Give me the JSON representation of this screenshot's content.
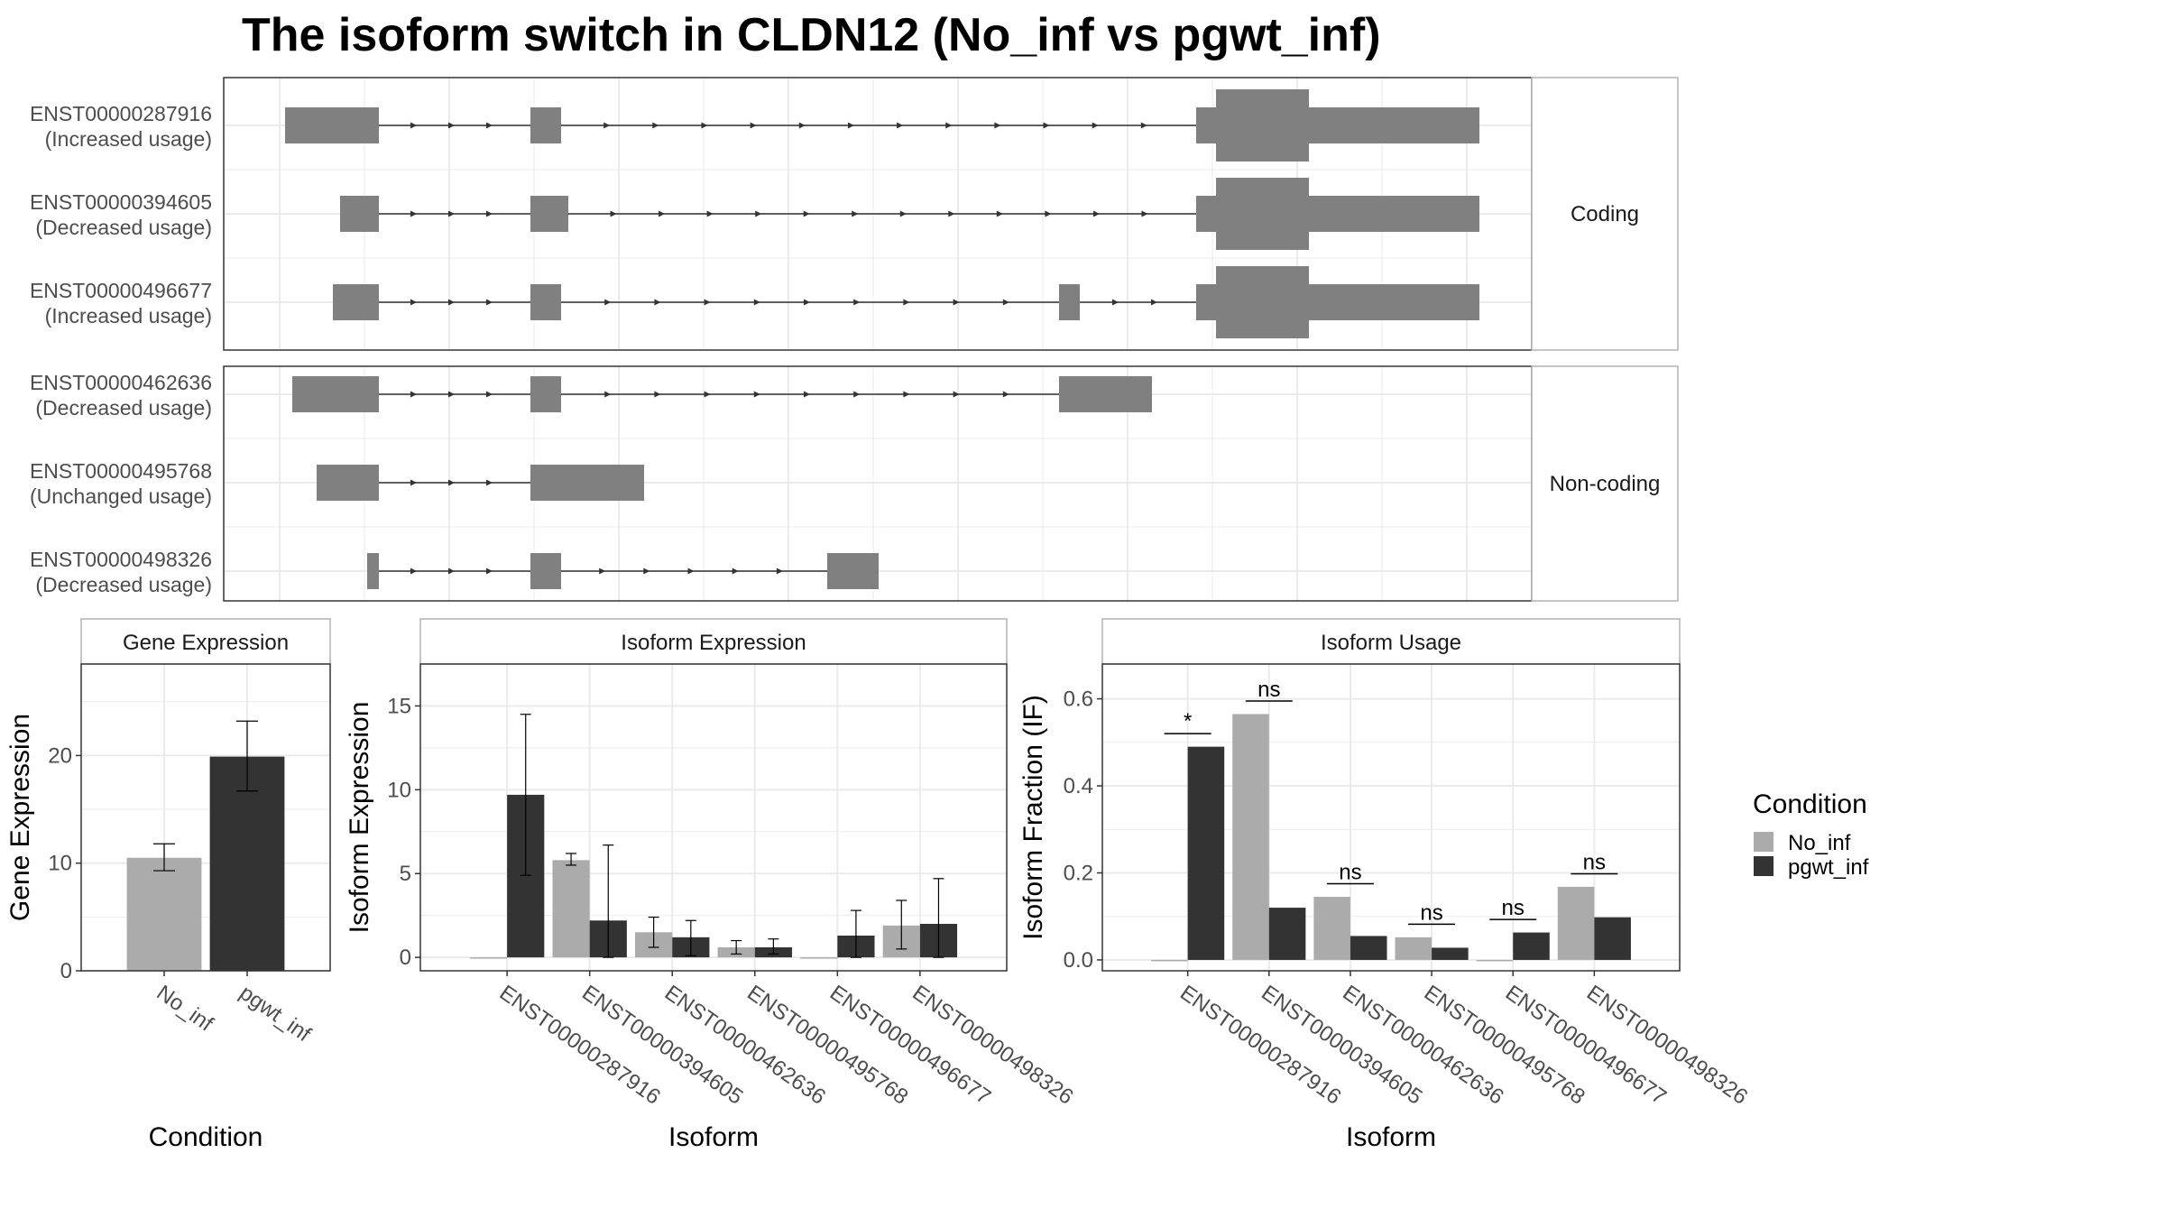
{
  "title": "The isoform switch in CLDN12 (No_inf vs pgwt_inf)",
  "colors": {
    "no_inf": "#ababab",
    "pgwt_inf": "#333333",
    "exon": "#808080",
    "grid": "#ebebeb",
    "panel_border": "#333333",
    "strip_border": "#b3b3b3"
  },
  "structure": {
    "groups": [
      {
        "label": "Coding",
        "isoforms": [
          {
            "id": "ENST00000287916",
            "usage": "(Increased usage)"
          },
          {
            "id": "ENST00000394605",
            "usage": "(Decreased usage)"
          },
          {
            "id": "ENST00000496677",
            "usage": "(Increased usage)"
          }
        ]
      },
      {
        "label": "Non-coding",
        "isoforms": [
          {
            "id": "ENST00000462636",
            "usage": "(Decreased usage)"
          },
          {
            "id": "ENST00000495768",
            "usage": "(Unchanged usage)"
          },
          {
            "id": "ENST00000498326",
            "usage": "(Decreased usage)"
          }
        ]
      }
    ]
  },
  "legend": {
    "title": "Condition",
    "items": [
      {
        "label": "No_inf",
        "color": "#ababab"
      },
      {
        "label": "pgwt_inf",
        "color": "#333333"
      }
    ]
  },
  "chart_data": [
    {
      "type": "bar",
      "title": "Gene Expression",
      "xlabel": "Condition",
      "ylabel": "Gene Expression",
      "categories": [
        "No_inf",
        "pgwt_inf"
      ],
      "values": [
        10.5,
        19.9
      ],
      "errors": [
        [
          9.3,
          11.8
        ],
        [
          16.7,
          23.2
        ]
      ],
      "ylim": [
        0,
        28.5
      ],
      "yticks": [
        0,
        10,
        20
      ]
    },
    {
      "type": "bar",
      "title": "Isoform Expression",
      "xlabel": "Isoform",
      "ylabel": "Isoform Expression",
      "categories": [
        "ENST00000287916",
        "ENST00000394605",
        "ENST00000462636",
        "ENST00000495768",
        "ENST00000496677",
        "ENST00000498326"
      ],
      "series": [
        {
          "name": "No_inf",
          "values": [
            0,
            5.8,
            1.5,
            0.6,
            0,
            1.9
          ],
          "errors": [
            [
              0,
              0
            ],
            [
              5.5,
              6.2
            ],
            [
              0.6,
              2.4
            ],
            [
              0.2,
              1.0
            ],
            [
              0,
              0
            ],
            [
              0.5,
              3.4
            ]
          ]
        },
        {
          "name": "pgwt_inf",
          "values": [
            9.7,
            2.2,
            1.2,
            0.6,
            1.3,
            2.0
          ],
          "errors": [
            [
              4.9,
              14.5
            ],
            [
              0,
              6.7
            ],
            [
              0.1,
              2.2
            ],
            [
              0.2,
              1.1
            ],
            [
              0,
              2.8
            ],
            [
              0,
              4.7
            ]
          ]
        }
      ],
      "ylim": [
        -0.8,
        17.5
      ],
      "yticks": [
        0,
        5,
        10,
        15
      ]
    },
    {
      "type": "bar",
      "title": "Isoform Usage",
      "xlabel": "Isoform",
      "ylabel": "Isoform Fraction (IF)",
      "categories": [
        "ENST00000287916",
        "ENST00000394605",
        "ENST00000462636",
        "ENST00000495768",
        "ENST00000496677",
        "ENST00000498326"
      ],
      "series": [
        {
          "name": "No_inf",
          "values": [
            0,
            0.565,
            0.145,
            0.052,
            0,
            0.168
          ]
        },
        {
          "name": "pgwt_inf",
          "values": [
            0.49,
            0.12,
            0.055,
            0.028,
            0.063,
            0.098
          ]
        }
      ],
      "significance": [
        "*",
        "ns",
        "ns",
        "ns",
        "ns",
        "ns"
      ],
      "ylim": [
        -0.025,
        0.68
      ],
      "yticks": [
        0.0,
        0.2,
        0.4,
        0.6
      ]
    }
  ]
}
